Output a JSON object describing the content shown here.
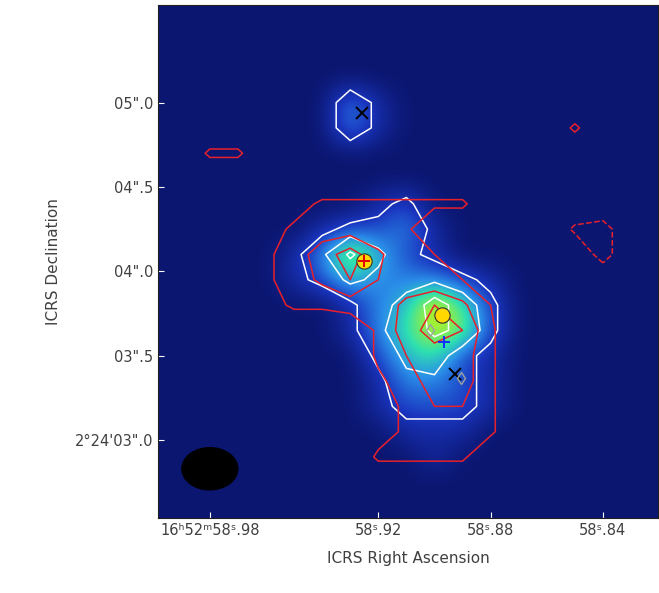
{
  "chart_data": {
    "type": "image",
    "xlabel": "ICRS Right Ascension",
    "ylabel": "ICRS Declination",
    "xlim": [
      58.9984,
      58.8205
    ],
    "ylim": [
      2.54,
      5.58
    ],
    "xticks": [
      {
        "value": 58.98,
        "label": "16ʰ52ᵐ58ˢ.98"
      },
      {
        "value": 58.92,
        "label": "58ˢ.92"
      },
      {
        "value": 58.88,
        "label": "58ˢ.88"
      },
      {
        "value": 58.84,
        "label": "58ˢ.84"
      }
    ],
    "yticks": [
      {
        "value": 3.0,
        "label": "2°24'03\".0"
      },
      {
        "value": 3.5,
        "label": "03\".5"
      },
      {
        "value": 4.0,
        "label": "04\".0"
      },
      {
        "value": 4.5,
        "label": "04\".5"
      },
      {
        "value": 5.0,
        "label": "05\".0"
      }
    ],
    "x": [
      59.0,
      58.99,
      58.98,
      58.97,
      58.96,
      58.95,
      58.94,
      58.93,
      58.92,
      58.91,
      58.9,
      58.89,
      58.88,
      58.87,
      58.86,
      58.85,
      58.84,
      58.83,
      58.82
    ],
    "y": [
      2.6,
      2.75,
      2.9,
      3.05,
      3.2,
      3.35,
      3.5,
      3.65,
      3.8,
      3.95,
      4.1,
      4.25,
      4.4,
      4.55,
      4.7,
      4.85,
      5.0,
      5.15,
      5.3,
      5.45,
      5.6
    ],
    "cells": [
      [
        1,
        1,
        1,
        1,
        1,
        1,
        1,
        1,
        1,
        1,
        1,
        1,
        1,
        1,
        1,
        1,
        1,
        1,
        1
      ],
      [
        1,
        1,
        1,
        1,
        1,
        1,
        1,
        1,
        1,
        1,
        1,
        1,
        1,
        1,
        1,
        1,
        1,
        1,
        1
      ],
      [
        1,
        1,
        1,
        1,
        1,
        1,
        1,
        1,
        1,
        1,
        2,
        1,
        1,
        1,
        1,
        1,
        1,
        1,
        1
      ],
      [
        1,
        1,
        1,
        1,
        1,
        1,
        1,
        1,
        1,
        2,
        2,
        2,
        1,
        1,
        1,
        1,
        1,
        1,
        1
      ],
      [
        1,
        1,
        1,
        1,
        1,
        1,
        1,
        1,
        2,
        3,
        3,
        3,
        2,
        1,
        1,
        1,
        1,
        1,
        1
      ],
      [
        1,
        1,
        1,
        1,
        1,
        1,
        1,
        1,
        2,
        4,
        4,
        3,
        2,
        1,
        1,
        1,
        1,
        1,
        1
      ],
      [
        1,
        1,
        1,
        1,
        1,
        1,
        1,
        1,
        3,
        5,
        6,
        3,
        2,
        1,
        1,
        1,
        1,
        1,
        1
      ],
      [
        1,
        1,
        1,
        1,
        1,
        1,
        1,
        2,
        4,
        6,
        8,
        7,
        3,
        1,
        1,
        1,
        1,
        1,
        1
      ],
      [
        1,
        1,
        1,
        1,
        1,
        1,
        1,
        2,
        4,
        5,
        9,
        6,
        3,
        1,
        1,
        1,
        1,
        1,
        1
      ],
      [
        1,
        1,
        1,
        1,
        1,
        2,
        3,
        5,
        4,
        4,
        4,
        3,
        2,
        1,
        1,
        1,
        1,
        1,
        1
      ],
      [
        1,
        1,
        1,
        1,
        1,
        2,
        4,
        8,
        5,
        3,
        2,
        1,
        1,
        1,
        1,
        1,
        1,
        1,
        1
      ],
      [
        1,
        1,
        1,
        1,
        1,
        1,
        2,
        3,
        3,
        4,
        2,
        1,
        1,
        1,
        1,
        1,
        1,
        1,
        1
      ],
      [
        1,
        1,
        1,
        1,
        1,
        1,
        1,
        1,
        2,
        3,
        1,
        1,
        1,
        1,
        1,
        1,
        1,
        1,
        1
      ],
      [
        1,
        1,
        1,
        1,
        1,
        1,
        1,
        1,
        1,
        1,
        1,
        1,
        1,
        1,
        1,
        1,
        1,
        1,
        1
      ],
      [
        1,
        1,
        1,
        1,
        1,
        1,
        1,
        1,
        1,
        1,
        1,
        1,
        1,
        1,
        1,
        1,
        1,
        1,
        1
      ],
      [
        1,
        1,
        1,
        1,
        1,
        1,
        1,
        4,
        2,
        1,
        1,
        1,
        1,
        1,
        1,
        1,
        1,
        1,
        1
      ],
      [
        1,
        1,
        1,
        1,
        1,
        1,
        1,
        4,
        2,
        1,
        1,
        1,
        1,
        1,
        1,
        1,
        1,
        1,
        1
      ],
      [
        1,
        1,
        1,
        1,
        1,
        1,
        1,
        1,
        1,
        1,
        1,
        1,
        1,
        1,
        1,
        1,
        1,
        1,
        1
      ],
      [
        1,
        1,
        1,
        1,
        1,
        1,
        1,
        1,
        1,
        1,
        1,
        1,
        1,
        1,
        1,
        1,
        1,
        1,
        1
      ],
      [
        1,
        1,
        1,
        1,
        1,
        1,
        1,
        1,
        1,
        1,
        1,
        1,
        1,
        1,
        1,
        1,
        1,
        1,
        1
      ],
      [
        1,
        1,
        1,
        1,
        1,
        1,
        1,
        1,
        1,
        1,
        1,
        1,
        1,
        1,
        1,
        1,
        1,
        1,
        1
      ]
    ],
    "contour_levels": [
      2.5,
      4.5,
      7.5
    ],
    "contour_color": "#ffffff",
    "second_cells": [
      [
        0,
        0,
        0,
        0,
        0,
        0,
        0,
        0,
        0,
        0,
        0,
        0,
        0,
        0,
        0,
        0,
        0,
        0,
        0
      ],
      [
        0,
        0,
        0,
        0,
        0,
        0,
        0,
        0,
        0,
        0,
        0,
        0,
        0,
        0,
        0,
        0,
        0,
        0,
        0
      ],
      [
        0,
        0,
        0,
        0,
        0,
        0,
        0,
        0,
        1.2,
        1.2,
        1.2,
        1.2,
        0,
        0,
        0,
        0,
        0,
        0,
        0
      ],
      [
        0,
        0,
        0,
        0,
        0,
        0,
        0,
        0,
        0.5,
        1.2,
        1.5,
        1.5,
        1.2,
        0,
        0,
        0,
        0,
        0,
        0
      ],
      [
        0,
        0,
        0,
        0,
        0,
        0,
        0,
        0,
        0.5,
        1.2,
        2,
        2,
        1.2,
        0,
        0,
        0,
        0,
        0,
        0
      ],
      [
        0,
        0,
        0,
        0,
        0,
        0,
        0,
        0,
        0.8,
        1.5,
        2.5,
        2.5,
        1.2,
        0,
        0,
        0,
        0,
        0,
        0
      ],
      [
        0,
        0,
        0,
        0,
        0,
        0,
        0,
        0,
        1.2,
        2,
        2.5,
        2.5,
        1.2,
        0,
        0,
        0,
        0,
        0,
        0
      ],
      [
        0,
        0,
        0,
        0,
        0,
        0,
        0,
        0,
        1.2,
        2.5,
        3.5,
        3,
        1.2,
        0,
        0,
        0,
        0,
        0,
        0
      ],
      [
        0,
        0,
        0,
        0,
        0.5,
        1.2,
        1.2,
        1.5,
        1.5,
        2.2,
        3,
        2.2,
        1,
        0,
        0,
        0,
        0,
        0,
        0
      ],
      [
        0,
        0,
        0,
        0,
        0.8,
        1.5,
        2.2,
        3,
        2,
        1.5,
        1.2,
        1,
        0,
        0,
        0,
        0,
        0,
        0,
        0
      ],
      [
        0,
        0,
        0,
        0,
        0.8,
        1.5,
        2.5,
        3.5,
        2.2,
        1.2,
        1,
        0,
        0,
        0,
        0,
        0,
        -1.5,
        0,
        0
      ],
      [
        0,
        0,
        0,
        0,
        0.5,
        1.2,
        1.5,
        1.5,
        1.2,
        1.2,
        0,
        0,
        0,
        0,
        0,
        -1.2,
        -1.5,
        0,
        0
      ],
      [
        0,
        0,
        0,
        0,
        0,
        0.5,
        1.2,
        1.2,
        1.2,
        1.2,
        1.2,
        1.2,
        0,
        0,
        0,
        0,
        0,
        0,
        0
      ],
      [
        0,
        0,
        0,
        0,
        0,
        0,
        0,
        0,
        0,
        0,
        0,
        0,
        0,
        0,
        0,
        0,
        0,
        0,
        0
      ],
      [
        0,
        0,
        1.2,
        1.2,
        0,
        0,
        0,
        0,
        0,
        0,
        0,
        0,
        0,
        0,
        0,
        0,
        0,
        0,
        0
      ],
      [
        0,
        0,
        0,
        0,
        0,
        0,
        0,
        0,
        0,
        0,
        0,
        0,
        0,
        0,
        0,
        1.2,
        0,
        0,
        0
      ],
      [
        0,
        0,
        0,
        0,
        0,
        0,
        0,
        0,
        0,
        0,
        0,
        0,
        0,
        0,
        0,
        0,
        0,
        0,
        0
      ],
      [
        0,
        0,
        0,
        0,
        0,
        0,
        0,
        0,
        0,
        0,
        0,
        0,
        0,
        0,
        0,
        0,
        0,
        0,
        0
      ],
      [
        0,
        0,
        0,
        0,
        0,
        0,
        0,
        0,
        0,
        0,
        0,
        0,
        0,
        0,
        0,
        0,
        0,
        0,
        0
      ],
      [
        0,
        0,
        0,
        0,
        0,
        0,
        0,
        0,
        0,
        0,
        0,
        0,
        0,
        0,
        0,
        0,
        0,
        0,
        0
      ],
      [
        0,
        0,
        0,
        0,
        0,
        0,
        0,
        0,
        0,
        0,
        0,
        0,
        0,
        0,
        0,
        0,
        0,
        0,
        0
      ]
    ],
    "second_contour_levels": [
      -1,
      1,
      2,
      3
    ],
    "second_contour_color": "#e8202a",
    "points": [
      {
        "x": 58.9257,
        "y": 4.94,
        "marker": "x",
        "color": "#000000"
      },
      {
        "x": 58.925,
        "y": 4.06,
        "marker": "circle",
        "color": "#ffd800"
      },
      {
        "x": 58.925,
        "y": 4.06,
        "marker": "plus",
        "color": "#e00000"
      },
      {
        "x": 58.8974,
        "y": 3.74,
        "marker": "circle",
        "color": "#ffd800"
      },
      {
        "x": 58.8967,
        "y": 3.58,
        "marker": "plus",
        "color": "#1030ff"
      },
      {
        "x": 58.9016,
        "y": 3.65,
        "marker": "diamond",
        "color": "#a0a0a0"
      },
      {
        "x": 58.8928,
        "y": 3.39,
        "marker": "x",
        "color": "#000000"
      },
      {
        "x": 58.8906,
        "y": 3.37,
        "marker": "diamond",
        "color": "#a0a0a0"
      }
    ],
    "beam": {
      "x": 58.98,
      "y": 2.83,
      "width": 0.0199,
      "height": 0.25,
      "color": "#000000"
    }
  }
}
